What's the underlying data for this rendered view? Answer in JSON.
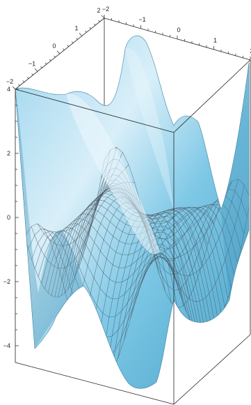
{
  "chart_data": {
    "type": "surface3d",
    "title": "",
    "xlabel": "",
    "ylabel": "",
    "zlabel": "",
    "function_shape": "saddle-like wave surface, peaks near z = 4 and troughs near z = -4",
    "x_range": [
      -2,
      2
    ],
    "y_range": [
      -2,
      2
    ],
    "z_range": [
      -4,
      4
    ],
    "x_ticks": [
      "−2",
      "−1",
      "0",
      "1",
      "2"
    ],
    "y_ticks": [
      "−2",
      "−1",
      "0",
      "1",
      "2"
    ],
    "z_ticks": [
      "−4",
      "−2",
      "0",
      "2",
      "4"
    ],
    "grid": false,
    "mesh": true,
    "surface_color": "#7ec8e6",
    "surface_highlight": "#e6f4fb",
    "surface_shadow": "#4aa3c9",
    "mesh_color": "#46525c"
  }
}
